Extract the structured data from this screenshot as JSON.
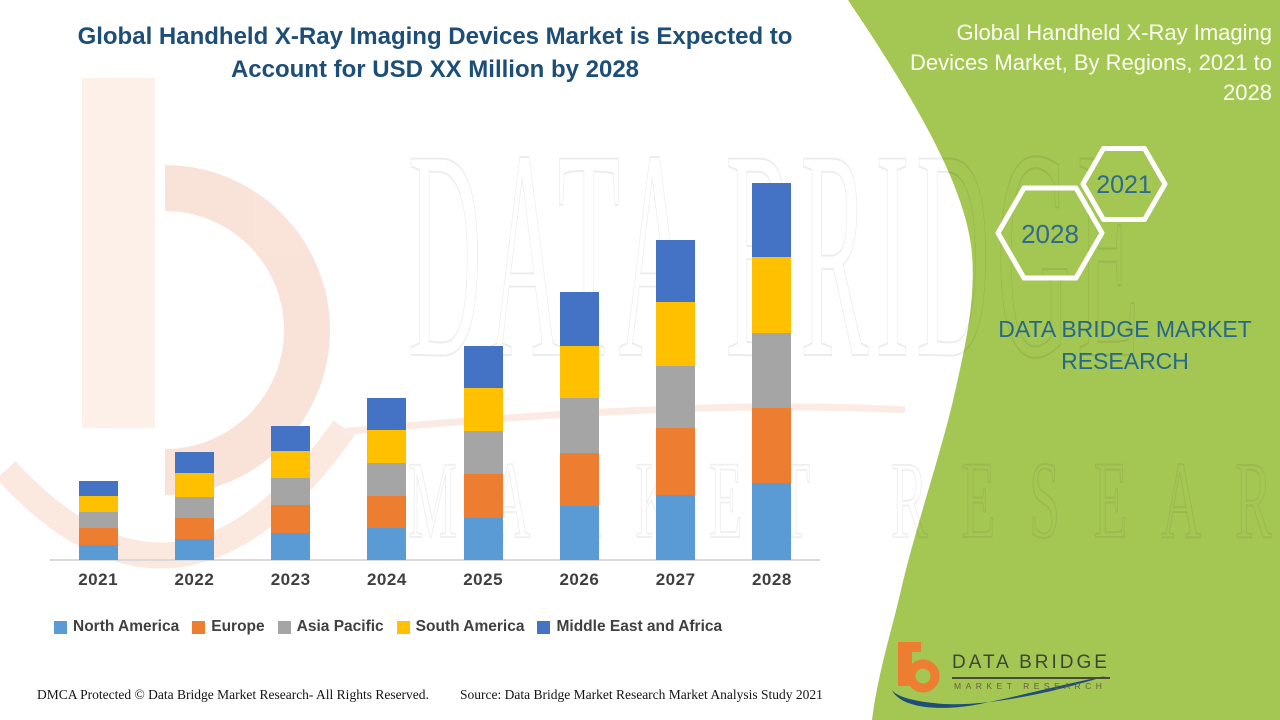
{
  "left_panel": {
    "title": "Global Handheld X-Ray Imaging Devices Market is Expected to Account for USD XX Million by 2028"
  },
  "chart_data": {
    "type": "bar",
    "stacked": true,
    "title": "Global Handheld X-Ray Imaging Devices Market is Expected to Account for USD XX Million by 2028",
    "xlabel": "",
    "ylabel": "",
    "units": "USD Million (shown as XX in title; no value axis displayed — series values are relative estimates from bar heights)",
    "categories": [
      "2021",
      "2022",
      "2023",
      "2024",
      "2025",
      "2026",
      "2027",
      "2028"
    ],
    "series": [
      {
        "name": "North America",
        "color": "#5b9bd5",
        "values": [
          15,
          21,
          27,
          32,
          42,
          54,
          65,
          77
        ]
      },
      {
        "name": "Europe",
        "color": "#ed7d31",
        "values": [
          17,
          21,
          28,
          32,
          44,
          53,
          67,
          75
        ]
      },
      {
        "name": "Asia Pacific",
        "color": "#a5a5a5",
        "values": [
          16,
          21,
          27,
          33,
          43,
          55,
          62,
          75
        ]
      },
      {
        "name": "South America",
        "color": "#ffc000",
        "values": [
          16,
          24,
          27,
          33,
          43,
          52,
          64,
          76
        ]
      },
      {
        "name": "Middle East and Africa",
        "color": "#4472c4",
        "values": [
          15,
          21,
          25,
          32,
          42,
          54,
          62,
          74
        ]
      }
    ],
    "totals": [
      79,
      108,
      134,
      162,
      214,
      268,
      320,
      377
    ],
    "ylim": [
      0,
      400
    ],
    "grid": false,
    "y_axis_shown": false,
    "legend_position": "bottom-left"
  },
  "right_panel": {
    "title": "Global Handheld X-Ray Imaging Devices Market, By Regions, 2021 to 2028",
    "hexagons": [
      {
        "label": "2021"
      },
      {
        "label": "2028"
      }
    ],
    "brand_text": "DATA BRIDGE MARKET RESEARCH",
    "background_color": "#a4c653",
    "year_text_color": "#2e6b8e"
  },
  "footer": {
    "dmca": "DMCA Protected © Data Bridge Market Research- All Rights Reserved.",
    "source": "Source: Data Bridge Market Research Market Analysis Study 2021"
  },
  "logo": {
    "line1": "DATA BRIDGE",
    "line2": "MARKET RESEARCH",
    "orange": "#ed7d31",
    "blue": "#1f4e79"
  },
  "watermark": {
    "text1": "DATA BRIDGE",
    "text2": "MARKET RESEARCH"
  }
}
